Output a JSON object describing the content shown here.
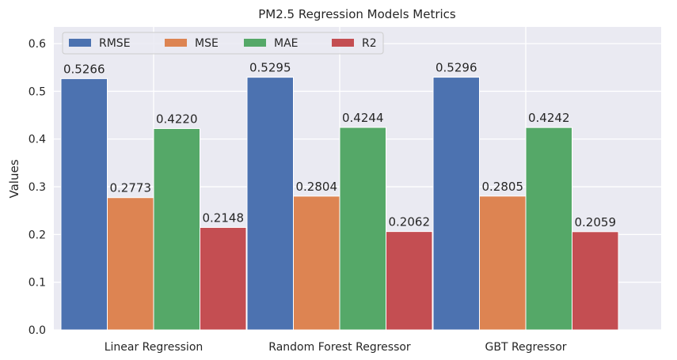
{
  "chart_data": {
    "type": "bar",
    "title": "PM2.5 Regression Models Metrics",
    "xlabel": "",
    "ylabel": "Values",
    "categories": [
      "Linear Regression",
      "Random Forest Regressor",
      "GBT Regressor"
    ],
    "series": [
      {
        "name": "RMSE",
        "color": "#4c72b0",
        "values": [
          0.5266,
          0.5295,
          0.5296
        ],
        "labels": [
          "0.5266",
          "0.5295",
          "0.5296"
        ]
      },
      {
        "name": "MSE",
        "color": "#dd8452",
        "values": [
          0.2773,
          0.2804,
          0.2805
        ],
        "labels": [
          "0.2773",
          "0.2804",
          "0.2805"
        ]
      },
      {
        "name": "MAE",
        "color": "#55a868",
        "values": [
          0.422,
          0.4244,
          0.4242
        ],
        "labels": [
          "0.4220",
          "0.4244",
          "0.4242"
        ]
      },
      {
        "name": "R2",
        "color": "#c44e52",
        "values": [
          0.2148,
          0.2062,
          0.2059
        ],
        "labels": [
          "0.2148",
          "0.2062",
          "0.2059"
        ]
      }
    ],
    "ylim": [
      0,
      0.635
    ],
    "yticks": [
      "0.0",
      "0.1",
      "0.2",
      "0.3",
      "0.4",
      "0.5",
      "0.6"
    ],
    "grid": true,
    "legend_position": "top-left",
    "background_color": "#eaeaf2",
    "grid_color": "#ffffff"
  }
}
